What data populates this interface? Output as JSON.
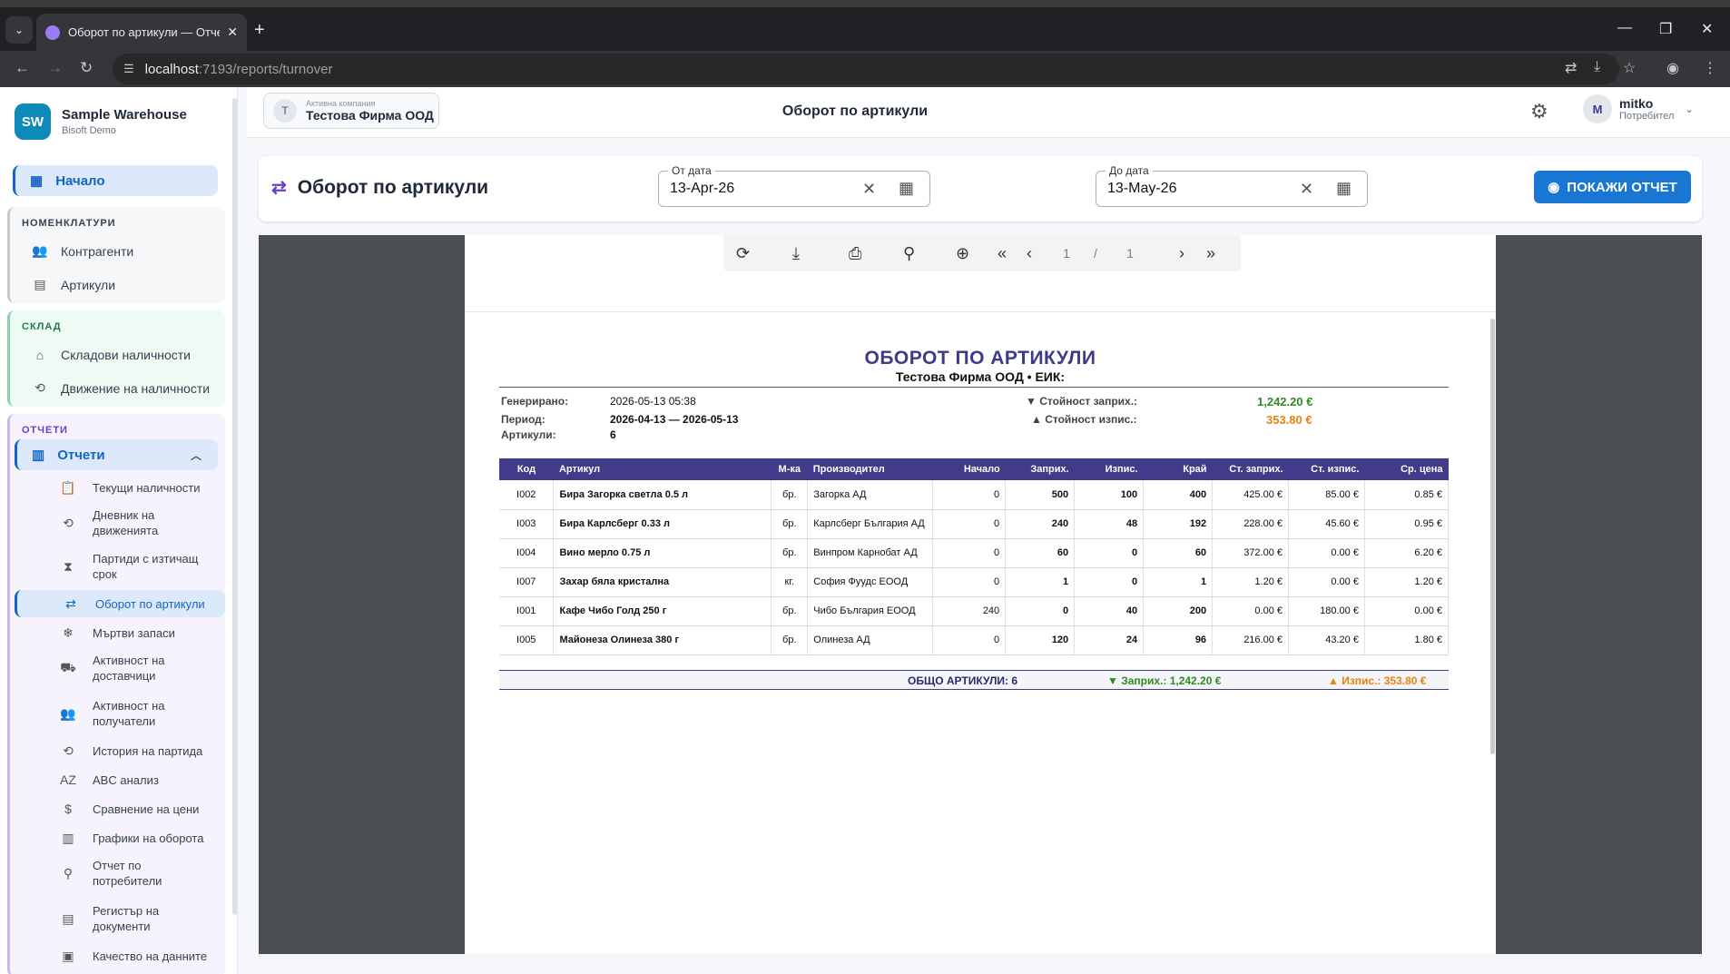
{
  "browser": {
    "tab_title": "Оборот по артикули — Отчет",
    "url_host": "localhost",
    "url_rest": ":7193/reports/turnover"
  },
  "sidebar": {
    "brand_initials": "SW",
    "brand_name": "Sample Warehouse",
    "brand_sub": "Bisoft Demo",
    "home": "Начало",
    "groups": [
      {
        "title": "НОМЕНКЛАТУРИ",
        "items": [
          "Контрагенти",
          "Артикули"
        ]
      },
      {
        "title": "СКЛАД",
        "items": [
          "Складови наличности",
          "Движение на наличности"
        ]
      },
      {
        "title": "ОТЧЕТИ",
        "items": [
          "Отчети"
        ]
      }
    ],
    "reports": [
      "Текущи наличности",
      "Дневник на движенията",
      "Партиди с изтичащ срок",
      "Оборот по артикули",
      "Мъртви запаси",
      "Активност на доставчици",
      "Активност на получатели",
      "История на партида",
      "ABC анализ",
      "Сравнение на цени",
      "Графики на оборота",
      "Отчет по потребители",
      "Регистър на документи",
      "Качество на данните"
    ]
  },
  "header": {
    "company_label": "Активна компания",
    "company_initial": "Т",
    "company_name": "Тестова Фирма ООД",
    "title": "Оборот по артикули",
    "user_initial": "M",
    "user_name": "mitko",
    "user_role": "Потребител"
  },
  "toolbar": {
    "title": "Оборот по артикули",
    "from_label": "От дата",
    "from_value": "13-Apr-26",
    "to_label": "До дата",
    "to_value": "13-May-26",
    "show_button": "ПОКАЖИ ОТЧЕТ"
  },
  "viewer": {
    "page_current": "1",
    "page_sep": "/",
    "page_total": "1"
  },
  "report": {
    "title": "ОБОРОТ ПО АРТИКУЛИ",
    "subtitle": "Тестова Фирма ООД • ЕИК:",
    "generated_label": "Генерирано:",
    "generated_value": "2026-05-13 05:38",
    "period_label": "Период:",
    "period_value": "2026-04-13 — 2026-05-13",
    "items_label": "Артикули:",
    "items_value": "6",
    "in_value_label": "▼ Стойност заприх.:",
    "in_value": "1,242.20 €",
    "out_value_label": "▲ Стойност изпис.:",
    "out_value": "353.80 €",
    "columns": [
      "Код",
      "Артикул",
      "М-ка",
      "Производител",
      "Начало",
      "Заприх.",
      "Изпис.",
      "Край",
      "Ст. заприх.",
      "Ст. изпис.",
      "Ср. цена"
    ],
    "rows": [
      {
        "code": "I002",
        "name": "Бира Загорка светла 0.5 л",
        "unit": "бр.",
        "maker": "Загорка АД",
        "start": "0",
        "in": "500",
        "out": "100",
        "end": "400",
        "in_val": "425.00 €",
        "out_val": "85.00 €",
        "avg": "0.85 €"
      },
      {
        "code": "I003",
        "name": "Бира Карлсберг 0.33 л",
        "unit": "бр.",
        "maker": "Карлсберг България АД",
        "start": "0",
        "in": "240",
        "out": "48",
        "end": "192",
        "in_val": "228.00 €",
        "out_val": "45.60 €",
        "avg": "0.95 €"
      },
      {
        "code": "I004",
        "name": "Вино мерло 0.75 л",
        "unit": "бр.",
        "maker": "Винпром Карнобат АД",
        "start": "0",
        "in": "60",
        "out": "0",
        "end": "60",
        "in_val": "372.00 €",
        "out_val": "0.00 €",
        "avg": "6.20 €"
      },
      {
        "code": "I007",
        "name": "Захар бяла кристална",
        "unit": "кг.",
        "maker": "София Фуудс ЕООД",
        "start": "0",
        "in": "1",
        "out": "0",
        "end": "1",
        "in_val": "1.20 €",
        "out_val": "0.00 €",
        "avg": "1.20 €"
      },
      {
        "code": "I001",
        "name": "Кафе Чибо Голд 250 г",
        "unit": "бр.",
        "maker": "Чибо България ЕООД",
        "start": "240",
        "in": "0",
        "out": "40",
        "end": "200",
        "in_val": "0.00 €",
        "out_val": "180.00 €",
        "avg": "0.00 €"
      },
      {
        "code": "I005",
        "name": "Майонеза Олинеза 380 г",
        "unit": "бр.",
        "maker": "Олинеза АД",
        "start": "0",
        "in": "120",
        "out": "24",
        "end": "96",
        "in_val": "216.00 €",
        "out_val": "43.20 €",
        "avg": "1.80 €"
      }
    ],
    "total_items": "ОБЩО АРТИКУЛИ: 6",
    "total_in": "▼ Заприх.: 1,242.20 €",
    "total_out": "▲ Изпис.: 353.80 €"
  },
  "colors": {
    "accent": "#1976d2",
    "report_header": "#413b8a",
    "in_green": "#2e8b23",
    "out_orange": "#e6820e"
  }
}
